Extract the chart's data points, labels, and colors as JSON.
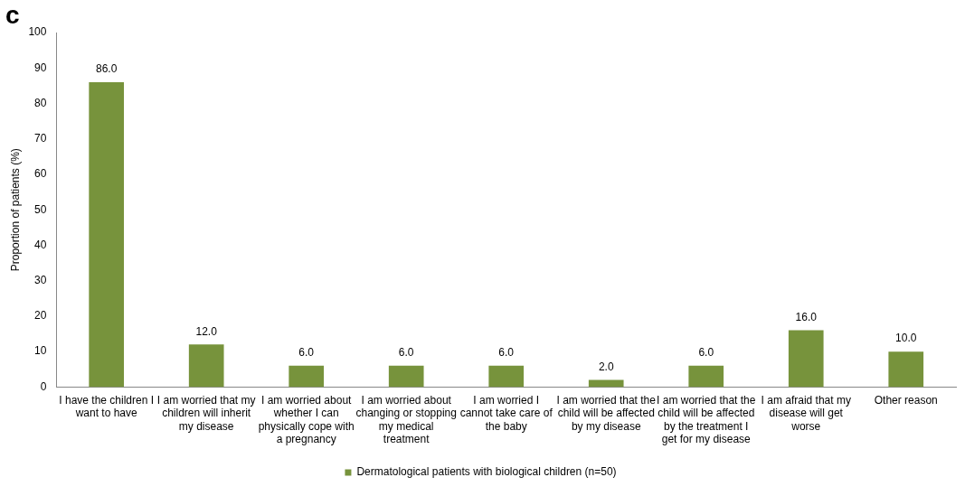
{
  "chart_data": {
    "type": "bar",
    "title": "c",
    "ylabel": "Proportion of patients (%)",
    "categories": [
      "I have the children I want to have",
      "I am worried that my children will inherit my disease",
      "I am worried about whether I can physically cope with a pregnancy",
      "I am worried about changing or stopping my medical treatment",
      "I am worried I cannot take care of the baby",
      "I am worried that the child will be affected by my disease",
      "I am worried that the child will be affected by the treatment I get for my disease",
      "I am afraid that my disease will get worse",
      "Other reason"
    ],
    "series": [
      {
        "name": "Dermatological patients with biological children (n=50)",
        "color": "#77933c",
        "values": [
          86.0,
          12.0,
          6.0,
          6.0,
          6.0,
          2.0,
          6.0,
          16.0,
          10.0
        ],
        "value_labels": [
          "86.0",
          "12.0",
          "6.0",
          "6.0",
          "6.0",
          "2.0",
          "6.0",
          "16.0",
          "10.0"
        ]
      }
    ],
    "ylim": [
      0,
      100
    ],
    "yticks": [
      0,
      10,
      20,
      30,
      40,
      50,
      60,
      70,
      80,
      90,
      100
    ],
    "grid": false,
    "legend": "bottom"
  }
}
